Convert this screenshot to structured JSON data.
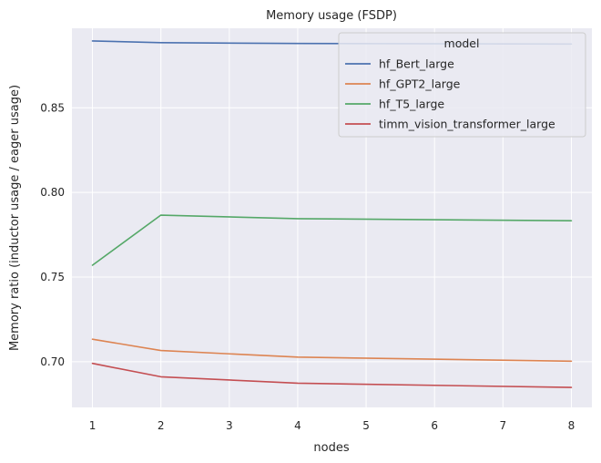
{
  "chart_data": {
    "type": "line",
    "title": "Memory usage (FSDP)",
    "xlabel": "nodes",
    "ylabel": "Memory ratio (inductor usage / eager usage)",
    "x": [
      1,
      2,
      4,
      8
    ],
    "xticks": [
      1,
      2,
      3,
      4,
      5,
      6,
      7,
      8
    ],
    "xlim": [
      0.7,
      8.3
    ],
    "yticks": [
      0.7,
      0.75,
      0.8,
      0.85
    ],
    "ylim": [
      0.673,
      0.897
    ],
    "grid": true,
    "background": "#eaeaf2",
    "legend": {
      "title": "model",
      "position": "top-right"
    },
    "series": [
      {
        "name": "hf_Bert_large",
        "color": "#4c72b0",
        "values": [
          0.8895,
          0.8885,
          0.888,
          0.8877
        ]
      },
      {
        "name": "hf_GPT2_large",
        "color": "#dd8452",
        "values": [
          0.7133,
          0.7066,
          0.7027,
          0.7003
        ]
      },
      {
        "name": "hf_T5_large",
        "color": "#55a868",
        "values": [
          0.757,
          0.7866,
          0.7845,
          0.7833
        ]
      },
      {
        "name": "timm_vision_transformer_large",
        "color": "#c44e52",
        "values": [
          0.699,
          0.6911,
          0.6873,
          0.6848
        ]
      }
    ]
  }
}
